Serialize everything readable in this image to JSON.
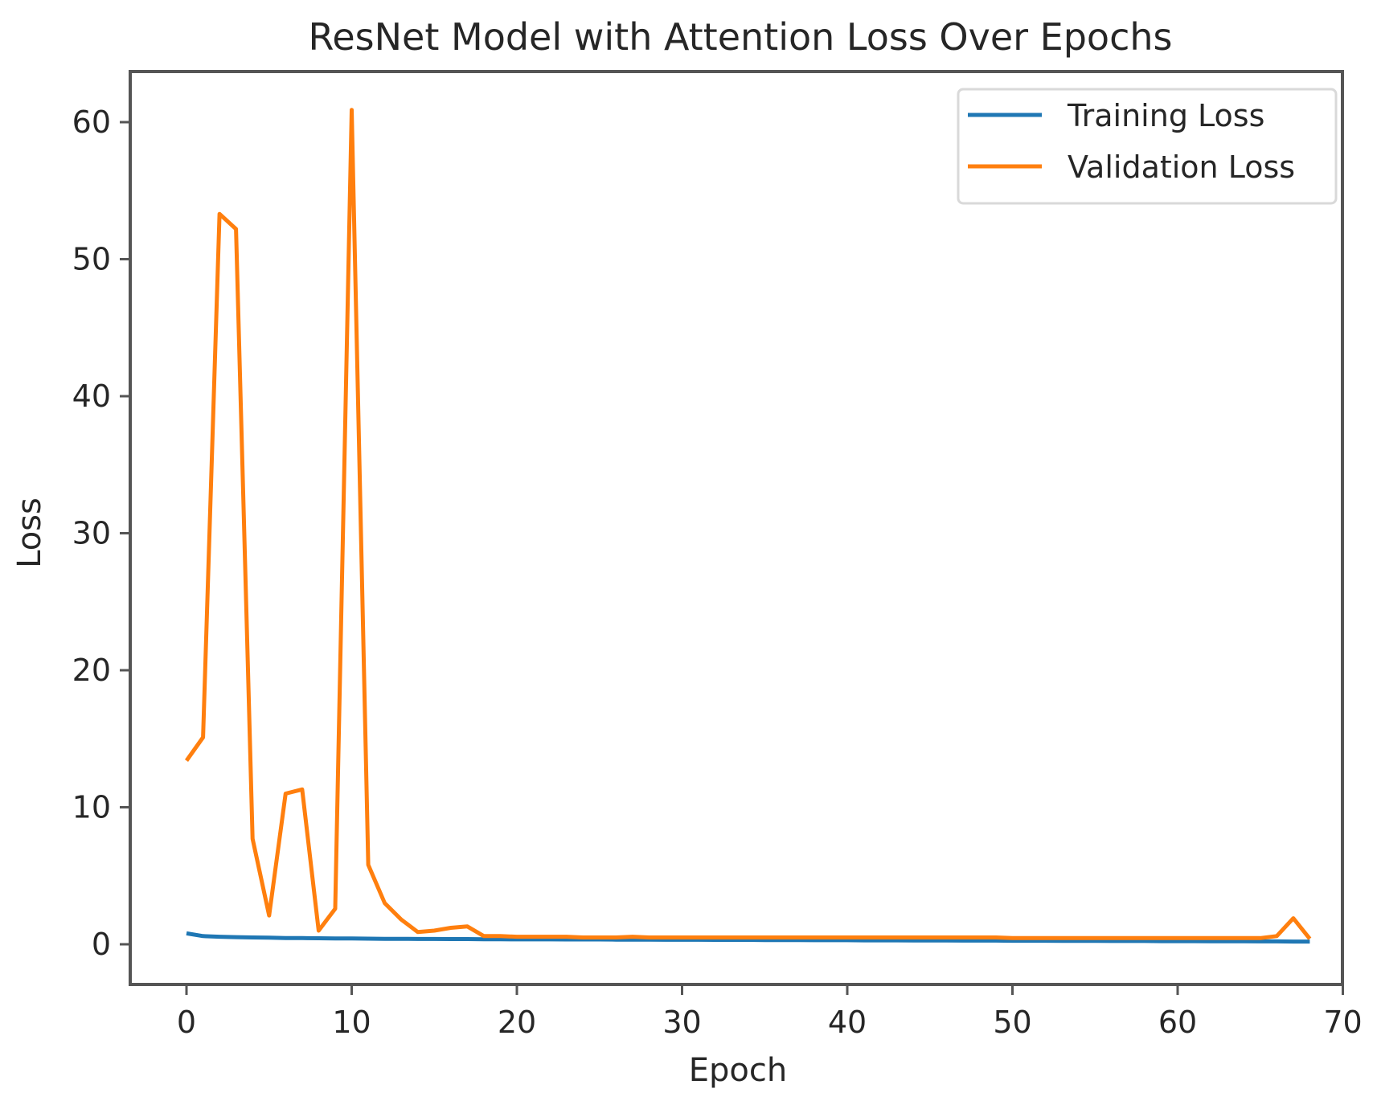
{
  "chart_data": {
    "type": "line",
    "title": "ResNet Model with Attention Loss Over Epochs",
    "xlabel": "Epoch",
    "ylabel": "Loss",
    "xlim": [
      -3.5,
      71.5
    ],
    "ylim": [
      -3,
      64
    ],
    "xticks": [
      0,
      10,
      20,
      30,
      40,
      50,
      60,
      70
    ],
    "yticks": [
      0,
      10,
      20,
      30,
      40,
      50,
      60
    ],
    "grid": false,
    "legend_position": "upper right",
    "x": [
      0,
      1,
      2,
      3,
      4,
      5,
      6,
      7,
      8,
      9,
      10,
      11,
      12,
      13,
      14,
      15,
      16,
      17,
      18,
      19,
      20,
      21,
      22,
      23,
      24,
      25,
      26,
      27,
      28,
      29,
      30,
      31,
      32,
      33,
      34,
      35,
      36,
      37,
      38,
      39,
      40,
      41,
      42,
      43,
      44,
      45,
      46,
      47,
      48,
      49,
      50,
      51,
      52,
      53,
      54,
      55,
      56,
      57,
      58,
      59,
      60,
      61,
      62,
      63,
      64,
      65,
      66,
      67,
      68
    ],
    "series": [
      {
        "name": "Training Loss",
        "color": "#1f77b4",
        "values": [
          0.8,
          0.6,
          0.55,
          0.52,
          0.5,
          0.48,
          0.46,
          0.45,
          0.44,
          0.43,
          0.42,
          0.41,
          0.4,
          0.4,
          0.39,
          0.39,
          0.38,
          0.38,
          0.37,
          0.37,
          0.36,
          0.36,
          0.36,
          0.35,
          0.35,
          0.35,
          0.34,
          0.34,
          0.34,
          0.33,
          0.33,
          0.33,
          0.32,
          0.32,
          0.32,
          0.31,
          0.31,
          0.31,
          0.3,
          0.3,
          0.3,
          0.29,
          0.29,
          0.29,
          0.28,
          0.28,
          0.28,
          0.27,
          0.27,
          0.27,
          0.26,
          0.26,
          0.26,
          0.25,
          0.25,
          0.25,
          0.24,
          0.24,
          0.24,
          0.23,
          0.23,
          0.23,
          0.22,
          0.22,
          0.22,
          0.21,
          0.21,
          0.2,
          0.2
        ]
      },
      {
        "name": "Validation Loss",
        "color": "#ff7f0e",
        "values": [
          13.4,
          15.1,
          53.3,
          52.2,
          7.7,
          2.1,
          11.0,
          11.3,
          1.0,
          2.6,
          60.9,
          5.8,
          3.0,
          1.8,
          0.9,
          1.0,
          1.2,
          1.3,
          0.6,
          0.6,
          0.55,
          0.55,
          0.55,
          0.55,
          0.5,
          0.5,
          0.5,
          0.55,
          0.5,
          0.5,
          0.5,
          0.5,
          0.5,
          0.5,
          0.5,
          0.5,
          0.5,
          0.5,
          0.5,
          0.5,
          0.5,
          0.5,
          0.5,
          0.5,
          0.5,
          0.5,
          0.5,
          0.5,
          0.5,
          0.5,
          0.45,
          0.45,
          0.45,
          0.45,
          0.45,
          0.45,
          0.45,
          0.45,
          0.45,
          0.45,
          0.45,
          0.45,
          0.45,
          0.45,
          0.45,
          0.45,
          0.6,
          1.9,
          0.4
        ]
      }
    ]
  },
  "legend": {
    "items": [
      {
        "label": "Training Loss",
        "color": "#1f77b4"
      },
      {
        "label": "Validation Loss",
        "color": "#ff7f0e"
      }
    ]
  }
}
